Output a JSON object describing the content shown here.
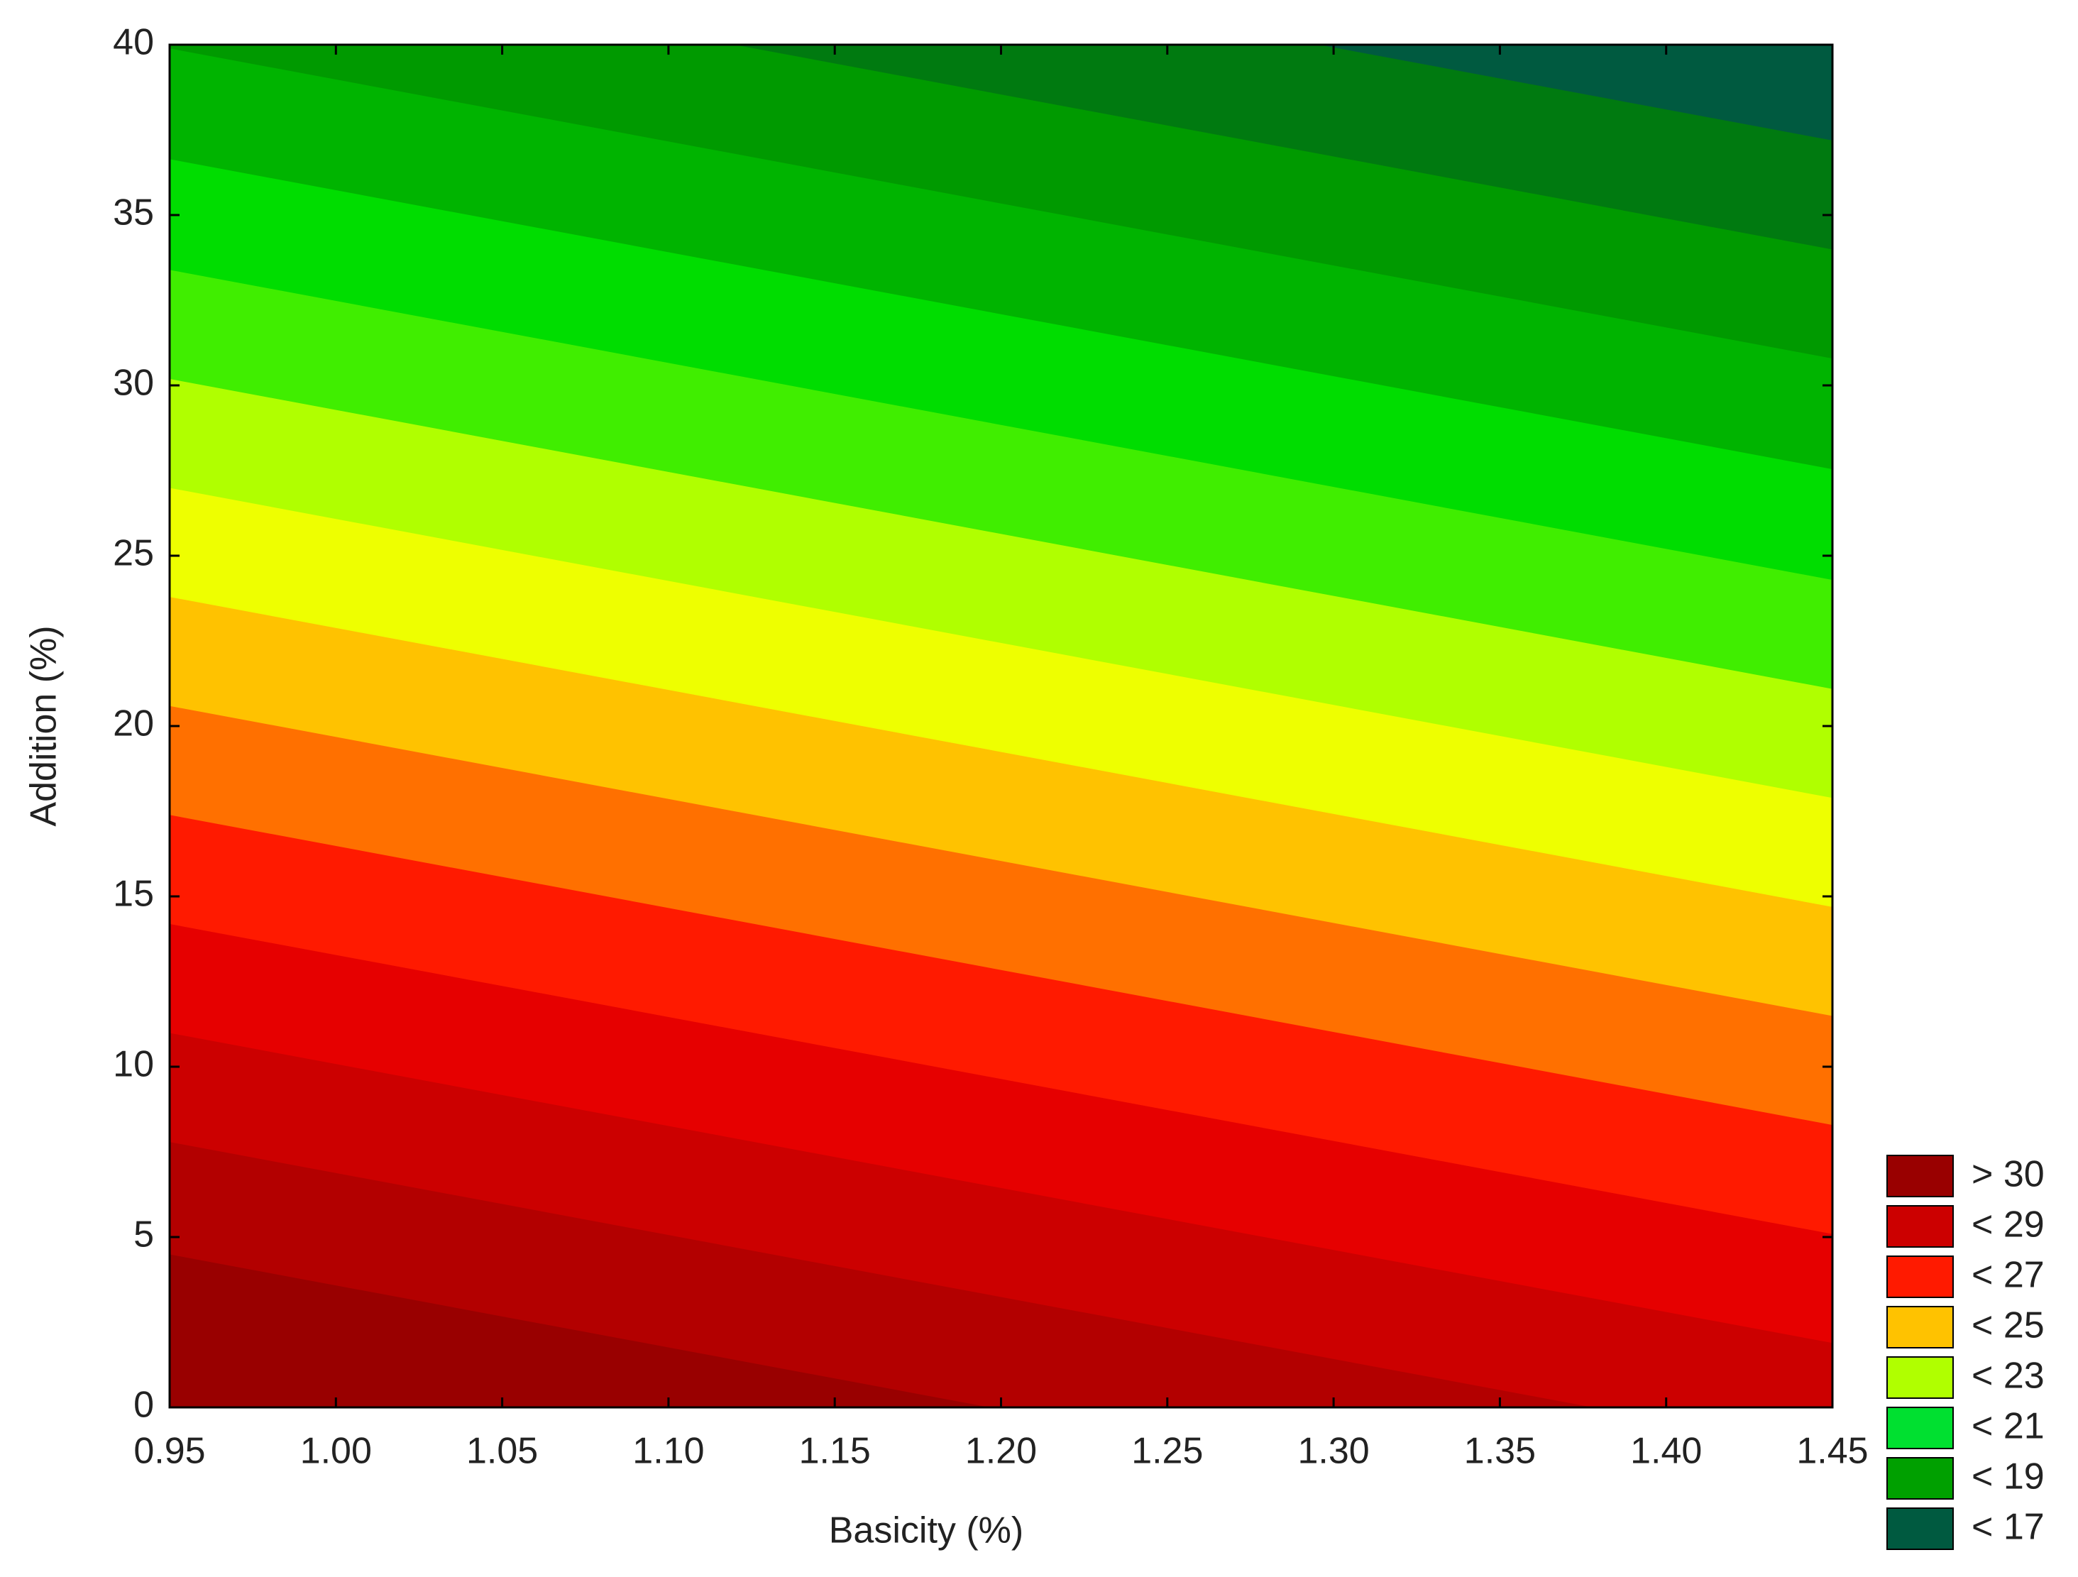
{
  "chart_data": {
    "type": "contour",
    "xlabel": "Basicity (%)",
    "ylabel": "Addition (%)",
    "xlim": [
      0.95,
      1.45
    ],
    "xticks": [
      0.95,
      {
        "value": 1,
        "label": "1.00"
      },
      1.05,
      {
        "value": 1.1,
        "label": "1.10"
      },
      1.15,
      {
        "value": 1.2,
        "label": "1.20"
      },
      1.25,
      {
        "value": 1.3,
        "label": "1.30"
      },
      1.35,
      {
        "value": 1.4,
        "label": "1.40"
      },
      1.45
    ],
    "ylim": [
      0,
      40
    ],
    "yticks": [
      0,
      5,
      10,
      15,
      20,
      25,
      30,
      35,
      40
    ],
    "boundaries": [
      {
        "y_left": 4.5,
        "y_right": -4.6
      },
      {
        "y_left": 7.8,
        "y_right": -1.3
      },
      {
        "y_left": 11,
        "y_right": 1.9
      },
      {
        "y_left": 14.2,
        "y_right": 5.1
      },
      {
        "y_left": 17.4,
        "y_right": 8.3
      },
      {
        "y_left": 20.6,
        "y_right": 11.5
      },
      {
        "y_left": 23.8,
        "y_right": 14.7
      },
      {
        "y_left": 27,
        "y_right": 17.9
      },
      {
        "y_left": 30.2,
        "y_right": 21.1
      },
      {
        "y_left": 33.4,
        "y_right": 24.3
      },
      {
        "y_left": 36.65,
        "y_right": 27.55
      },
      {
        "y_left": 39.9,
        "y_right": 30.8
      },
      {
        "y_left": 43.1,
        "y_right": 34
      },
      {
        "y_left": 46.3,
        "y_right": 37.2
      }
    ],
    "band_colors": [
      "#990000",
      "#b30000",
      "#cc0000",
      "#e60000",
      "#ff1a00",
      "#ff7000",
      "#ffc200",
      "#eeff00",
      "#b0ff00",
      "#40ee00",
      "#00dd00",
      "#00b400",
      "#009a00",
      "#007a10",
      "#005a40"
    ],
    "legend": [
      {
        "label": "> 30",
        "color": "#990000"
      },
      {
        "label": "< 29",
        "color": "#cc0000"
      },
      {
        "label": "< 27",
        "color": "#ff1a00"
      },
      {
        "label": "< 25",
        "color": "#ffc200"
      },
      {
        "label": "< 23",
        "color": "#b0ff00"
      },
      {
        "label": "< 21",
        "color": "#00e030"
      },
      {
        "label": "< 19",
        "color": "#00a000"
      },
      {
        "label": "< 17",
        "color": "#005a40"
      }
    ]
  }
}
